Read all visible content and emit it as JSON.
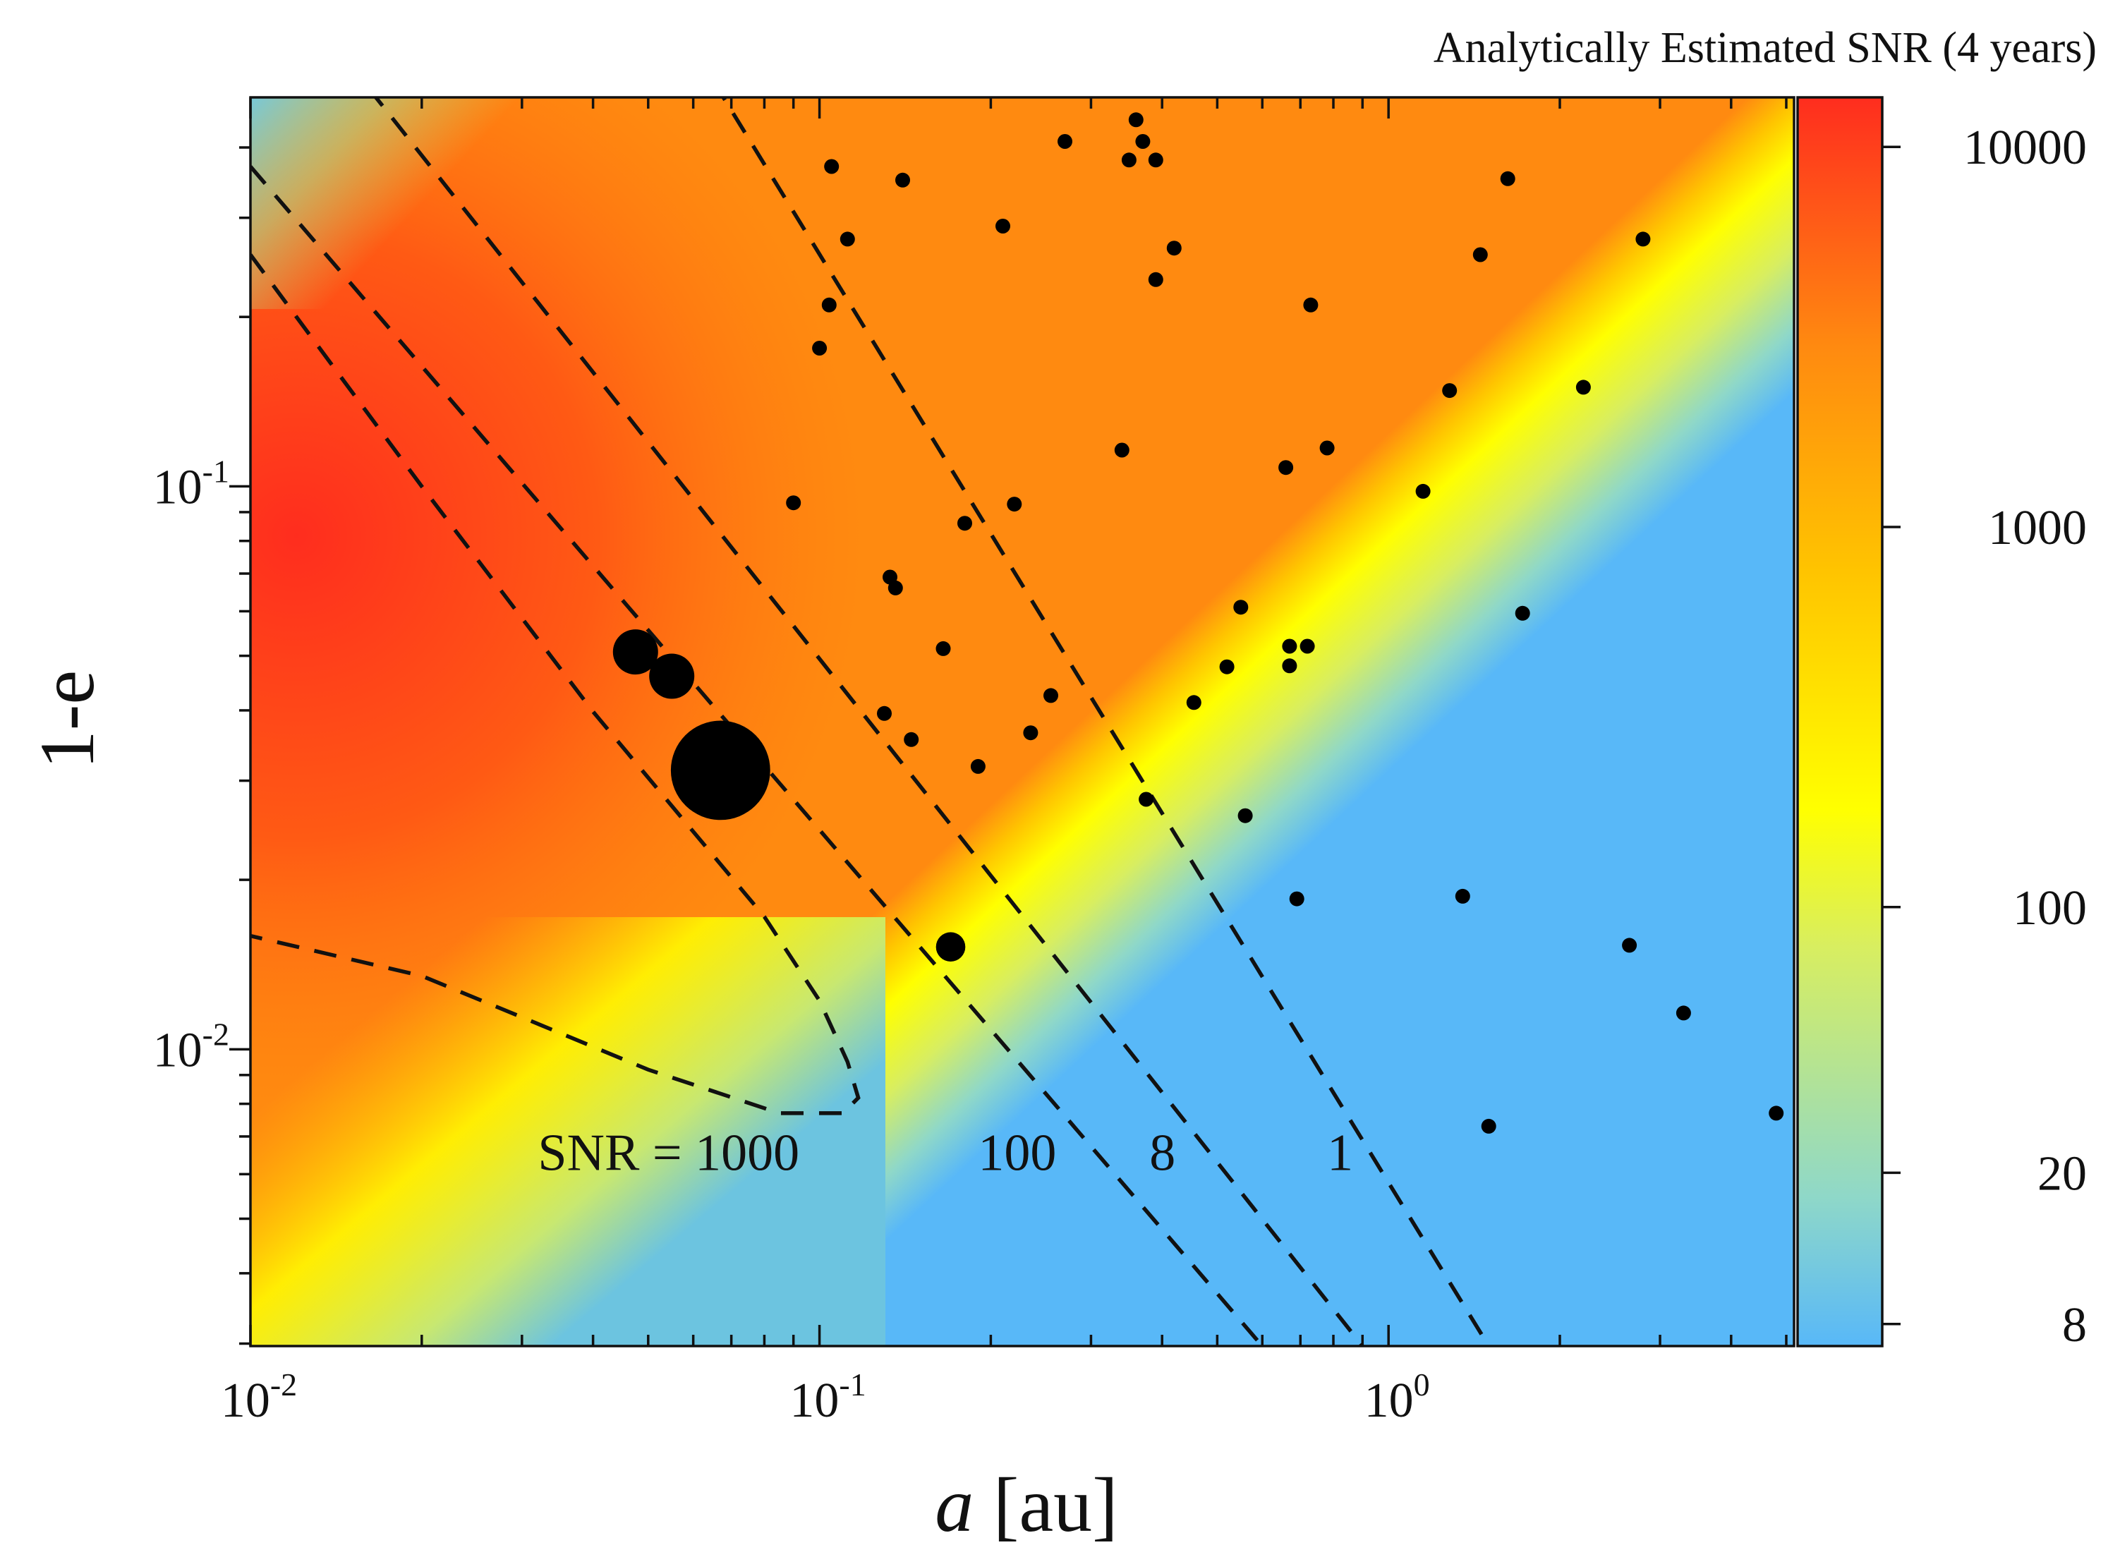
{
  "chart_data": {
    "type": "heatmap",
    "title": "",
    "xlabel": {
      "var": "a",
      "unit": " [au]"
    },
    "ylabel": "1-e",
    "x_scale": "log",
    "y_scale": "log",
    "xlim": [
      0.01,
      5.16
    ],
    "ylim": [
      0.00297,
      0.491
    ],
    "x_ticks": [
      {
        "value": 0.01,
        "base": "10",
        "exp": "-2"
      },
      {
        "value": 0.1,
        "base": "10",
        "exp": "-1"
      },
      {
        "value": 1,
        "base": "10",
        "exp": "0"
      }
    ],
    "y_ticks": [
      {
        "value": 0.01,
        "base": "10",
        "exp": "-2"
      },
      {
        "value": 0.1,
        "base": "10",
        "exp": "-1"
      }
    ],
    "colorbar": {
      "title": "Analytically Estimated SNR (4 years)",
      "scale": "log",
      "range": [
        7,
        13500
      ],
      "ticks": [
        {
          "value": 8,
          "label": "8"
        },
        {
          "value": 20,
          "label": "20"
        },
        {
          "value": 100,
          "label": "100"
        },
        {
          "value": 1000,
          "label": "1000"
        },
        {
          "value": 10000,
          "label": "10000"
        }
      ],
      "colormap": [
        "#58b8f8",
        "#8fd8c8",
        "#d8ee60",
        "#ffff00",
        "#ffc400",
        "#ff8a10",
        "#ff2d1e"
      ]
    },
    "contours": [
      {
        "snr": 1000,
        "label": "SNR = 1000",
        "label_pos": {
          "x": 0.032,
          "y": 0.0061
        },
        "path": [
          [
            0.01,
            0.258
          ],
          [
            0.02,
            0.1
          ],
          [
            0.04,
            0.0398
          ],
          [
            0.08,
            0.0172
          ],
          [
            0.1,
            0.0122
          ],
          [
            0.112,
            0.0095
          ],
          [
            0.117,
            0.0082
          ],
          [
            0.11,
            0.0077
          ],
          [
            0.085,
            0.0077
          ],
          [
            0.05,
            0.0092
          ],
          [
            0.03,
            0.0114
          ],
          [
            0.02,
            0.0135
          ],
          [
            0.01,
            0.0159
          ]
        ]
      },
      {
        "snr": 100,
        "label": "100",
        "label_pos": {
          "x": 0.19,
          "y": 0.0061
        },
        "path": [
          [
            0.01,
            0.37
          ],
          [
            0.6,
            0.00297
          ]
        ]
      },
      {
        "snr": 8,
        "label": "8",
        "label_pos": {
          "x": 0.38,
          "y": 0.0061
        },
        "path": [
          [
            0.01,
            0.94
          ],
          [
            0.9,
            0.00297
          ]
        ]
      },
      {
        "snr": 1,
        "label": "1",
        "label_pos": {
          "x": 0.78,
          "y": 0.0061
        },
        "path": [
          [
            0.06,
            0.6
          ],
          [
            1.5,
            0.00297
          ]
        ]
      }
    ],
    "points_large": [
      {
        "x": 0.0475,
        "y": 0.0508,
        "size": 1
      },
      {
        "x": 0.055,
        "y": 0.046,
        "size": 1
      },
      {
        "x": 0.067,
        "y": 0.0313,
        "size": 2.2
      },
      {
        "x": 0.17,
        "y": 0.0152,
        "size": 0.65
      }
    ],
    "points_small": [
      {
        "x": 0.105,
        "y": 0.37
      },
      {
        "x": 0.14,
        "y": 0.35
      },
      {
        "x": 0.112,
        "y": 0.275
      },
      {
        "x": 0.104,
        "y": 0.21
      },
      {
        "x": 0.1,
        "y": 0.176
      },
      {
        "x": 0.21,
        "y": 0.29
      },
      {
        "x": 0.27,
        "y": 0.41
      },
      {
        "x": 0.36,
        "y": 0.448
      },
      {
        "x": 0.35,
        "y": 0.38
      },
      {
        "x": 0.37,
        "y": 0.41
      },
      {
        "x": 0.39,
        "y": 0.38
      },
      {
        "x": 0.42,
        "y": 0.265
      },
      {
        "x": 0.39,
        "y": 0.233
      },
      {
        "x": 0.73,
        "y": 0.21
      },
      {
        "x": 1.45,
        "y": 0.258
      },
      {
        "x": 1.62,
        "y": 0.352
      },
      {
        "x": 2.8,
        "y": 0.275
      },
      {
        "x": 1.28,
        "y": 0.148
      },
      {
        "x": 2.2,
        "y": 0.15
      },
      {
        "x": 0.34,
        "y": 0.116
      },
      {
        "x": 0.66,
        "y": 0.108
      },
      {
        "x": 0.78,
        "y": 0.117
      },
      {
        "x": 1.15,
        "y": 0.098
      },
      {
        "x": 0.09,
        "y": 0.0935
      },
      {
        "x": 0.22,
        "y": 0.093
      },
      {
        "x": 0.18,
        "y": 0.086
      },
      {
        "x": 0.133,
        "y": 0.069
      },
      {
        "x": 0.136,
        "y": 0.066
      },
      {
        "x": 0.55,
        "y": 0.061
      },
      {
        "x": 1.72,
        "y": 0.0595
      },
      {
        "x": 0.165,
        "y": 0.0515
      },
      {
        "x": 0.67,
        "y": 0.052
      },
      {
        "x": 0.72,
        "y": 0.052
      },
      {
        "x": 0.52,
        "y": 0.0478
      },
      {
        "x": 0.67,
        "y": 0.048
      },
      {
        "x": 0.255,
        "y": 0.0425
      },
      {
        "x": 0.455,
        "y": 0.0413
      },
      {
        "x": 0.13,
        "y": 0.0395
      },
      {
        "x": 0.145,
        "y": 0.0355
      },
      {
        "x": 0.235,
        "y": 0.0365
      },
      {
        "x": 0.19,
        "y": 0.0318
      },
      {
        "x": 0.375,
        "y": 0.0278
      },
      {
        "x": 0.56,
        "y": 0.026
      },
      {
        "x": 0.69,
        "y": 0.0185
      },
      {
        "x": 1.35,
        "y": 0.0187
      },
      {
        "x": 2.65,
        "y": 0.0153
      },
      {
        "x": 3.3,
        "y": 0.0116
      },
      {
        "x": 1.5,
        "y": 0.0073
      },
      {
        "x": 4.8,
        "y": 0.0077
      }
    ]
  }
}
